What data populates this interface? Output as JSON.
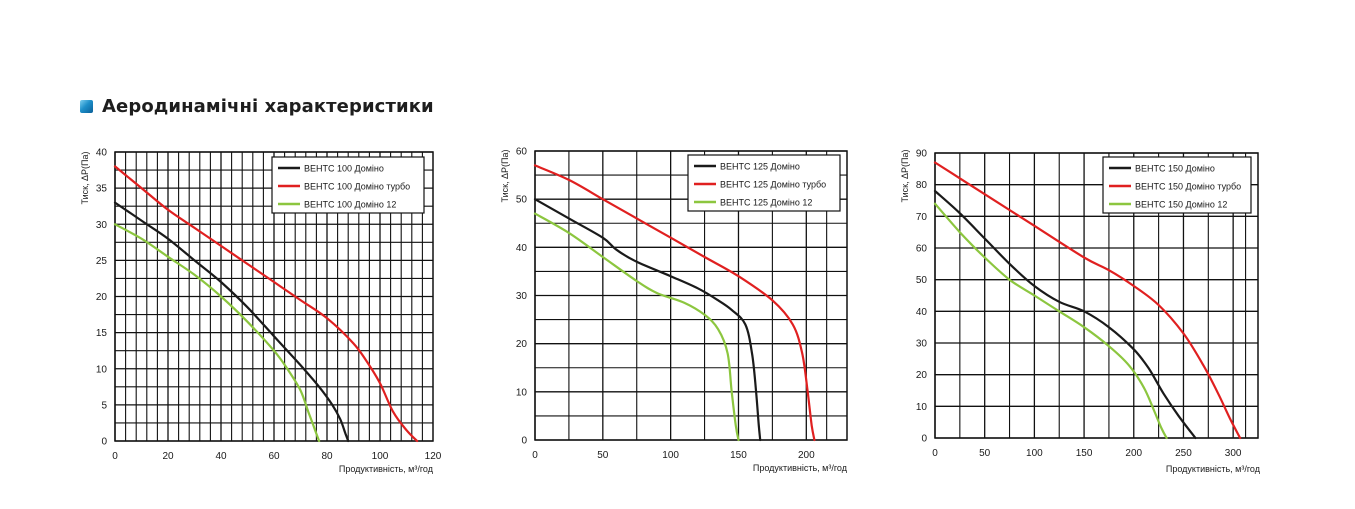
{
  "header": {
    "title": "Аеродинамічні характеристики"
  },
  "chart_data": [
    {
      "type": "line",
      "title": "",
      "xlabel": "Продуктивність, м³/год",
      "ylabel": "Тиск, ΔР(Па)",
      "xlim": [
        0,
        120
      ],
      "ylim": [
        0,
        40
      ],
      "xticks": [
        0,
        20,
        40,
        60,
        80,
        100,
        120
      ],
      "yticks": [
        0,
        5,
        10,
        15,
        20,
        25,
        30,
        35,
        40
      ],
      "grid": true,
      "legend": "top-right",
      "series": [
        {
          "name": "ВЕНТС 100 Доміно",
          "color": "#1a1a1a",
          "points": [
            [
              0,
              33
            ],
            [
              10,
              30.5
            ],
            [
              20,
              28
            ],
            [
              30,
              25
            ],
            [
              40,
              22
            ],
            [
              50,
              18.5
            ],
            [
              60,
              14.5
            ],
            [
              70,
              10.5
            ],
            [
              77,
              7.5
            ],
            [
              82,
              5
            ],
            [
              85,
              3
            ],
            [
              87,
              1
            ],
            [
              88,
              0
            ]
          ]
        },
        {
          "name": "ВЕНТС 100 Доміно турбо",
          "color": "#e02020",
          "points": [
            [
              0,
              38
            ],
            [
              10,
              35
            ],
            [
              20,
              32
            ],
            [
              30,
              29.5
            ],
            [
              40,
              27
            ],
            [
              50,
              24.5
            ],
            [
              60,
              22
            ],
            [
              70,
              19.5
            ],
            [
              80,
              17
            ],
            [
              90,
              13.5
            ],
            [
              95,
              11
            ],
            [
              100,
              8
            ],
            [
              105,
              4
            ],
            [
              110,
              1.5
            ],
            [
              114,
              0
            ]
          ]
        },
        {
          "name": "ВЕНТС 100 Доміно 12",
          "color": "#8cc63f",
          "points": [
            [
              0,
              30
            ],
            [
              10,
              28
            ],
            [
              20,
              25.5
            ],
            [
              30,
              23
            ],
            [
              40,
              20
            ],
            [
              50,
              16.5
            ],
            [
              60,
              12.5
            ],
            [
              65,
              10
            ],
            [
              70,
              7
            ],
            [
              73,
              4
            ],
            [
              75,
              2
            ],
            [
              77,
              0
            ]
          ]
        }
      ]
    },
    {
      "type": "line",
      "title": "",
      "xlabel": "Продуктивність, м³/год",
      "ylabel": "Тиск, ΔР(Па)",
      "xlim": [
        0,
        230
      ],
      "ylim": [
        0,
        60
      ],
      "xticks": [
        0,
        50,
        100,
        150,
        200
      ],
      "yticks": [
        0,
        10,
        20,
        30,
        40,
        50,
        60
      ],
      "grid": true,
      "legend": "top-right",
      "series": [
        {
          "name": "ВЕНТС 125 Доміно",
          "color": "#1a1a1a",
          "points": [
            [
              0,
              50
            ],
            [
              25,
              46
            ],
            [
              50,
              42
            ],
            [
              60,
              39.5
            ],
            [
              75,
              37
            ],
            [
              100,
              34
            ],
            [
              120,
              31.5
            ],
            [
              135,
              29
            ],
            [
              145,
              27
            ],
            [
              155,
              24
            ],
            [
              160,
              18
            ],
            [
              163,
              10
            ],
            [
              165,
              3
            ],
            [
              166,
              0
            ]
          ]
        },
        {
          "name": "ВЕНТС 125 Доміно турбо",
          "color": "#e02020",
          "points": [
            [
              0,
              57
            ],
            [
              25,
              54
            ],
            [
              50,
              50
            ],
            [
              75,
              46
            ],
            [
              100,
              42
            ],
            [
              125,
              38
            ],
            [
              150,
              34
            ],
            [
              175,
              29
            ],
            [
              190,
              24
            ],
            [
              197,
              18
            ],
            [
              201,
              10
            ],
            [
              204,
              3
            ],
            [
              206,
              0
            ]
          ]
        },
        {
          "name": "ВЕНТС 125 Доміно 12",
          "color": "#8cc63f",
          "points": [
            [
              0,
              47
            ],
            [
              25,
              43
            ],
            [
              50,
              38
            ],
            [
              75,
              33
            ],
            [
              90,
              30.5
            ],
            [
              110,
              28.5
            ],
            [
              125,
              26
            ],
            [
              135,
              23
            ],
            [
              142,
              18
            ],
            [
              145,
              10
            ],
            [
              148,
              3
            ],
            [
              150,
              0
            ]
          ]
        }
      ]
    },
    {
      "type": "line",
      "title": "",
      "xlabel": "Продуктивність, м³/год",
      "ylabel": "Тиск, ΔР(Па)",
      "xlim": [
        0,
        325
      ],
      "ylim": [
        0,
        90
      ],
      "xticks": [
        0,
        50,
        100,
        150,
        200,
        250,
        300
      ],
      "yticks": [
        0,
        10,
        20,
        30,
        40,
        50,
        60,
        70,
        80,
        90
      ],
      "grid": true,
      "legend": "top-right",
      "series": [
        {
          "name": "ВЕНТС 150 Доміно",
          "color": "#1a1a1a",
          "points": [
            [
              0,
              78
            ],
            [
              25,
              71
            ],
            [
              50,
              63
            ],
            [
              75,
              55
            ],
            [
              100,
              48
            ],
            [
              125,
              43
            ],
            [
              150,
              40
            ],
            [
              175,
              35
            ],
            [
              200,
              28
            ],
            [
              215,
              22
            ],
            [
              230,
              14
            ],
            [
              245,
              7
            ],
            [
              262,
              0
            ]
          ]
        },
        {
          "name": "ВЕНТС 150 Доміно турбо",
          "color": "#e02020",
          "points": [
            [
              0,
              87
            ],
            [
              25,
              82
            ],
            [
              50,
              77
            ],
            [
              100,
              67
            ],
            [
              150,
              57
            ],
            [
              175,
              53
            ],
            [
              200,
              48
            ],
            [
              225,
              42
            ],
            [
              250,
              33
            ],
            [
              270,
              23
            ],
            [
              285,
              14
            ],
            [
              297,
              6
            ],
            [
              307,
              0
            ]
          ]
        },
        {
          "name": "ВЕНТС 150 Доміно 12",
          "color": "#8cc63f",
          "points": [
            [
              0,
              74
            ],
            [
              25,
              65
            ],
            [
              50,
              57
            ],
            [
              75,
              50
            ],
            [
              100,
              45
            ],
            [
              125,
              40
            ],
            [
              150,
              35
            ],
            [
              175,
              29
            ],
            [
              195,
              23
            ],
            [
              210,
              16
            ],
            [
              220,
              9
            ],
            [
              228,
              3
            ],
            [
              233,
              0
            ]
          ]
        }
      ]
    }
  ]
}
